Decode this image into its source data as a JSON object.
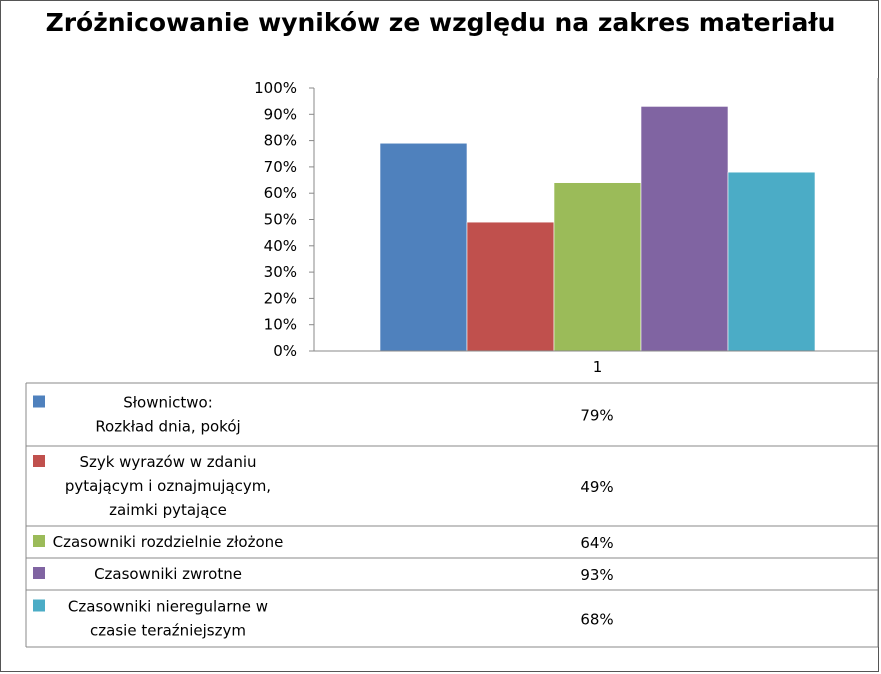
{
  "chart_data": {
    "type": "bar",
    "title": "Zróżnicowanie wyników ze względu na zakres materiału",
    "categories": [
      "1"
    ],
    "series": [
      {
        "name": [
          "Słownictwo:",
          "Rozkład dnia, pokój"
        ],
        "values": [
          0.79
        ],
        "label": "79%",
        "color": "#4f81bd"
      },
      {
        "name": [
          "Szyk wyrazów w zdaniu",
          "pytającym i oznajmującym,",
          "zaimki pytające"
        ],
        "values": [
          0.49
        ],
        "label": "49%",
        "color": "#c0504d"
      },
      {
        "name": [
          "Czasowniki rozdzielnie złożone"
        ],
        "values": [
          0.64
        ],
        "label": "64%",
        "color": "#9bbb59"
      },
      {
        "name": [
          "Czasowniki zwrotne"
        ],
        "values": [
          0.93
        ],
        "label": "93%",
        "color": "#8064a2"
      },
      {
        "name": [
          "Czasowniki nieregularne  w",
          "czasie teraźniejszym"
        ],
        "values": [
          0.68
        ],
        "label": "68%",
        "color": "#4bacc6"
      }
    ],
    "yticks": [
      "0%",
      "10%",
      "20%",
      "30%",
      "40%",
      "50%",
      "60%",
      "70%",
      "80%",
      "90%",
      "100%"
    ],
    "ylim": [
      0,
      1
    ],
    "grid": false,
    "legend": "data-table-below"
  }
}
